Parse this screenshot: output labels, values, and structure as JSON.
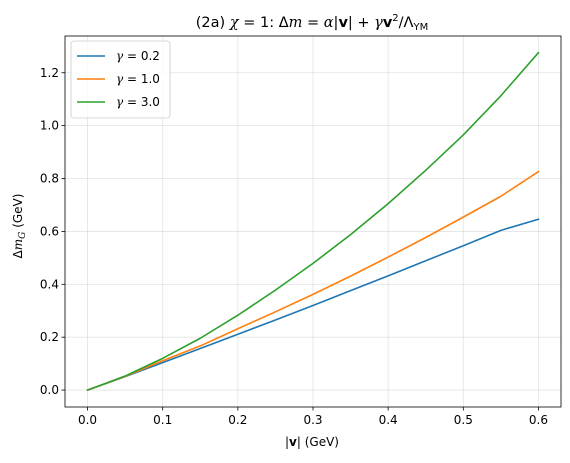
{
  "chart_data": {
    "type": "line",
    "title": {
      "prefix": "(2a) ",
      "chi": "χ",
      "eq1": " = 1: Δ",
      "m": "m",
      "eq2": " = ",
      "alpha": "α",
      "bar1": "|",
      "v1": "v",
      "bar2": "| + ",
      "gamma": "γ",
      "v2": "v",
      "sup": "2",
      "slash": "/Λ",
      "sub": "YM"
    },
    "xlabel": {
      "bar1": "|",
      "v": "v",
      "rest": "| (GeV)"
    },
    "ylabel": {
      "delta": "Δ",
      "m": "m",
      "sub": "G",
      "rest": " (GeV)"
    },
    "xlim": [
      -0.03,
      0.63
    ],
    "ylim": [
      -0.064,
      1.339
    ],
    "xticks": [
      0.0,
      0.1,
      0.2,
      0.3,
      0.4,
      0.5,
      0.6
    ],
    "xtick_labels": [
      "0.0",
      "0.1",
      "0.2",
      "0.3",
      "0.4",
      "0.5",
      "0.6"
    ],
    "yticks": [
      0.0,
      0.2,
      0.4,
      0.6,
      0.8,
      1.0,
      1.2
    ],
    "ytick_labels": [
      "0.0",
      "0.2",
      "0.4",
      "0.6",
      "0.8",
      "1.0",
      "1.2"
    ],
    "grid": true,
    "legend_position": "top-left",
    "x": [
      0.0,
      0.05,
      0.1,
      0.15,
      0.2,
      0.25,
      0.3,
      0.35,
      0.4,
      0.45,
      0.5,
      0.55,
      0.6
    ],
    "series": [
      {
        "name_prefix": "γ",
        "name_value": " = 0.2",
        "color": "#1f77b4",
        "values": [
          0.0,
          0.051,
          0.104,
          0.157,
          0.211,
          0.265,
          0.32,
          0.376,
          0.432,
          0.489,
          0.546,
          0.604,
          0.646
        ]
      },
      {
        "name_prefix": "γ",
        "name_value": " = 1.0",
        "color": "#ff7f0e",
        "values": [
          0.0,
          0.052,
          0.111,
          0.167,
          0.232,
          0.296,
          0.362,
          0.431,
          0.503,
          0.577,
          0.654,
          0.733,
          0.826
        ]
      },
      {
        "name_prefix": "γ",
        "name_value": " = 3.0",
        "color": "#2ca02c",
        "values": [
          0.0,
          0.053,
          0.12,
          0.196,
          0.283,
          0.378,
          0.479,
          0.588,
          0.705,
          0.831,
          0.965,
          1.113,
          1.276
        ]
      }
    ]
  }
}
